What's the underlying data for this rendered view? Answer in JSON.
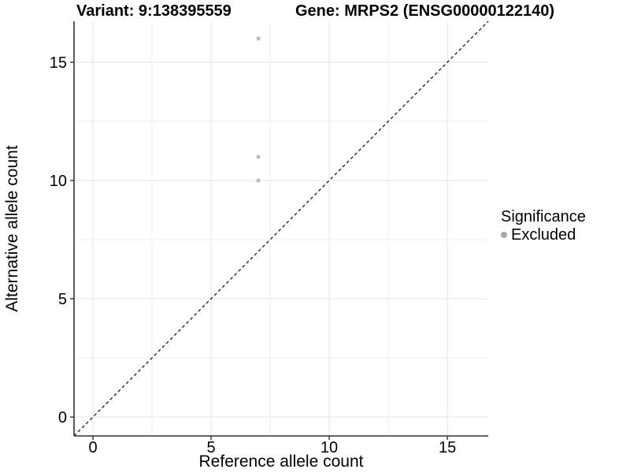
{
  "chart_data": {
    "type": "scatter",
    "title_left": "Variant: 9:138395559",
    "title_right": "Gene: MRPS2 (ENSG00000122140)",
    "xlabel": "Reference allele count",
    "ylabel": "Alternative allele count",
    "xlim": [
      -0.8,
      16.73
    ],
    "ylim": [
      -0.8,
      16.73
    ],
    "xticks": [
      0,
      5,
      10,
      15
    ],
    "yticks": [
      0,
      5,
      10,
      15
    ],
    "minor_ticks": [
      2.5,
      7.5,
      12.5
    ],
    "grid": true,
    "identity_line": {
      "style": "dashed",
      "slope": 1,
      "intercept": 0,
      "color": "#1a1a1a"
    },
    "series": [
      {
        "name": "Excluded",
        "color": "#bdbdbd",
        "points": [
          {
            "x": 7,
            "y": 16
          },
          {
            "x": 7,
            "y": 11
          },
          {
            "x": 7,
            "y": 10
          }
        ]
      }
    ],
    "legend": {
      "title": "Significance",
      "position": "right",
      "items": [
        {
          "label": "Excluded",
          "color": "#a8a8a8",
          "marker": "circle"
        }
      ]
    },
    "colors": {
      "background": "#ffffff",
      "grid_major": "#e4e4e4",
      "grid_minor": "#efefef",
      "axis": "#333333",
      "tick_text": "#000000",
      "point": "#bdbdbd",
      "identity_line": "#1a1a1a"
    }
  }
}
